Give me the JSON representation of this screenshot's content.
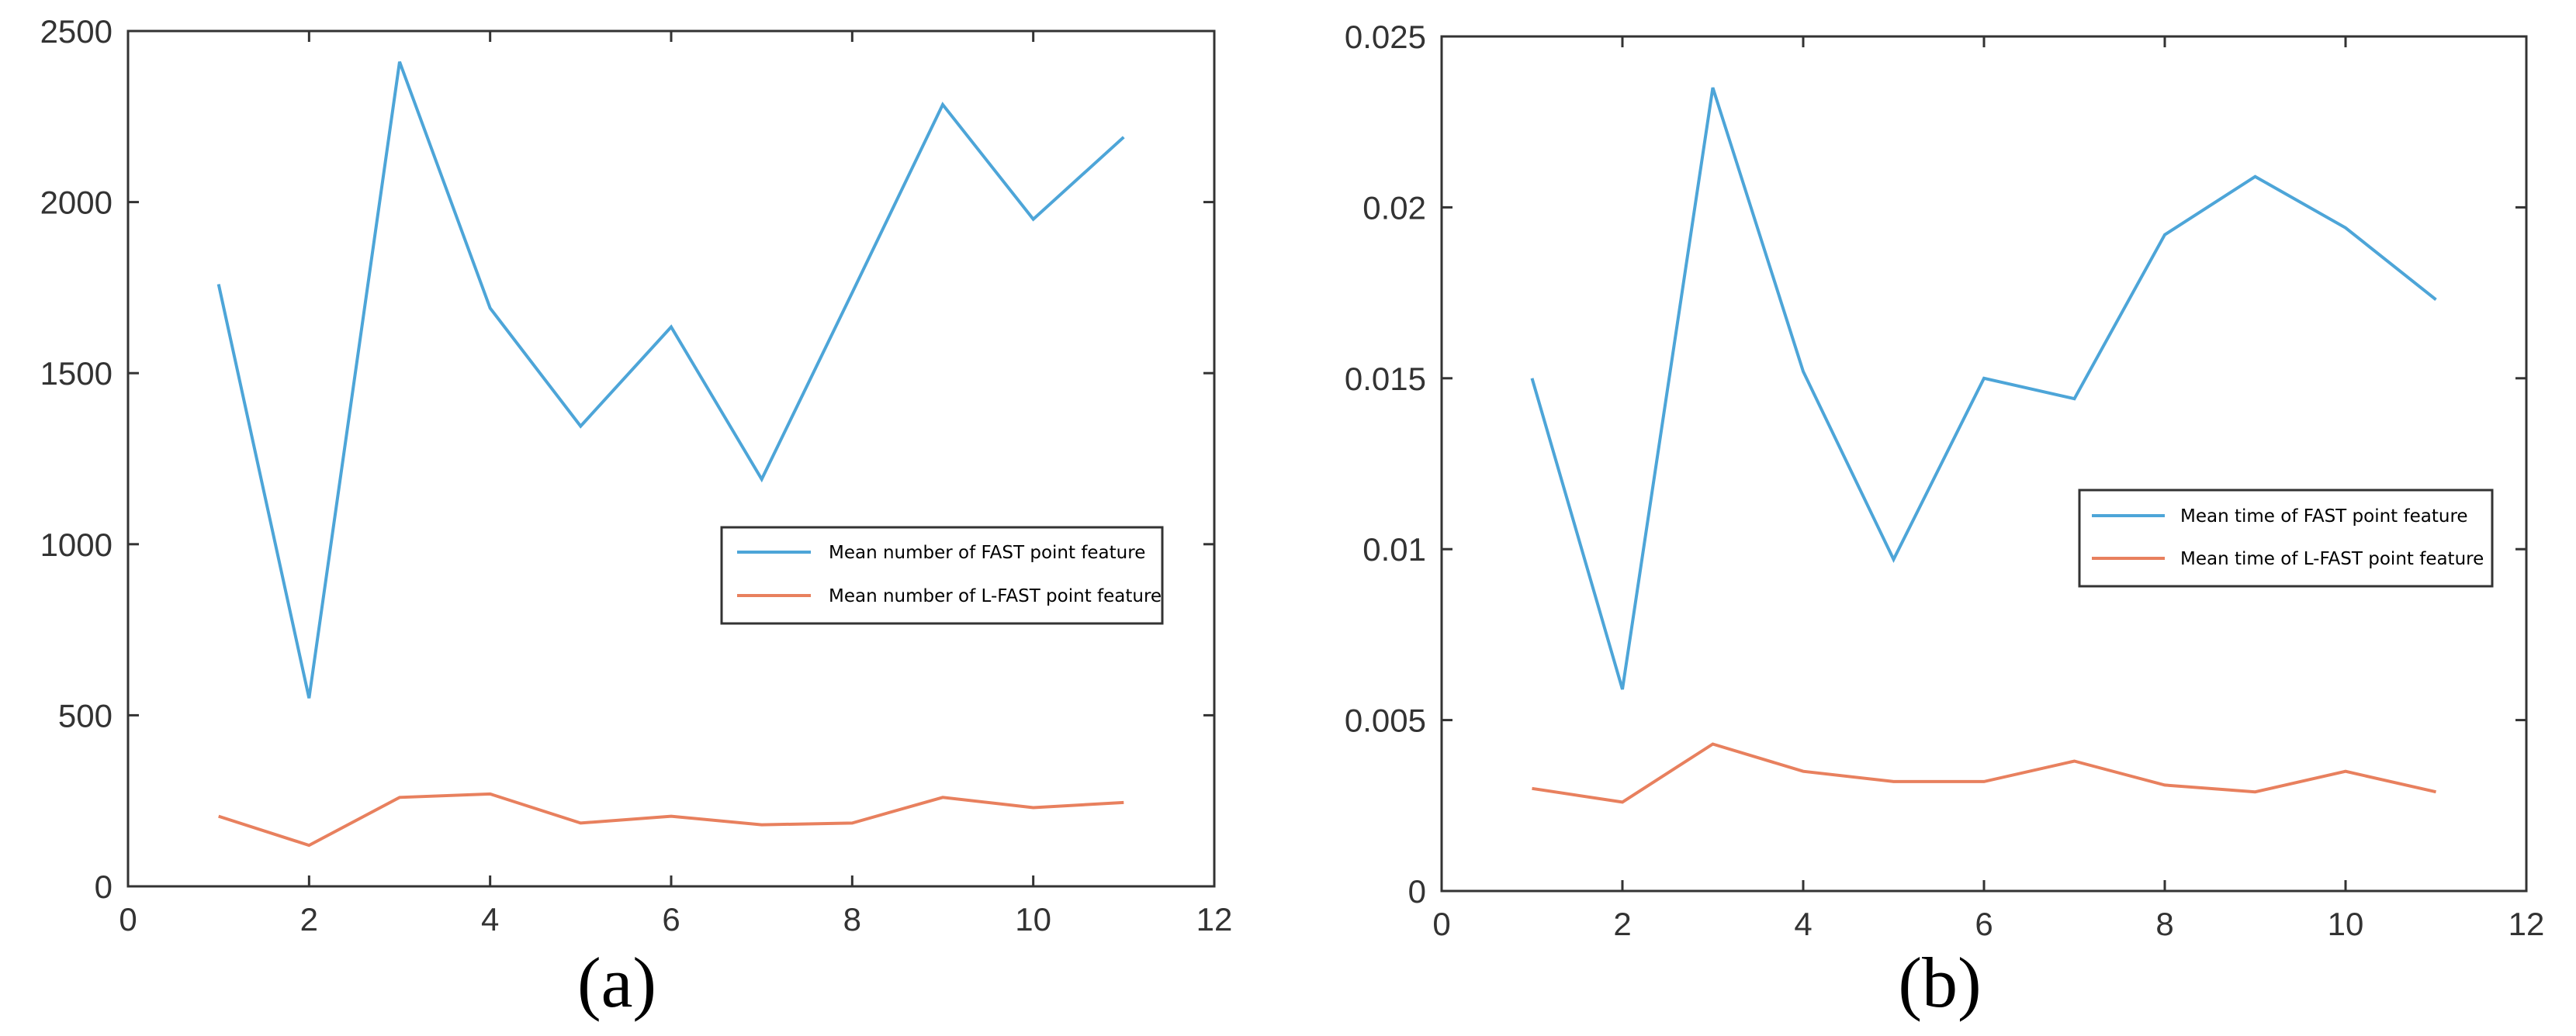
{
  "colors": {
    "fast": "#4DA5D8",
    "lfast": "#E8805E",
    "axis": "#333333"
  },
  "chart_data": [
    {
      "type": "line",
      "panel": "(a)",
      "title": "",
      "xlabel": "",
      "ylabel": "",
      "xlim": [
        0,
        12
      ],
      "ylim": [
        0,
        2500
      ],
      "xticks": [
        0,
        2,
        4,
        6,
        8,
        10,
        12
      ],
      "xtick_labels": [
        "0",
        "2",
        "4",
        "6",
        "8",
        "10",
        "12"
      ],
      "yticks": [
        0,
        500,
        1000,
        1500,
        2000,
        2500
      ],
      "ytick_labels": [
        "0",
        "500",
        "1000",
        "1500",
        "2000",
        "2500"
      ],
      "x": [
        1,
        2,
        3,
        4,
        5,
        6,
        7,
        8,
        9,
        10,
        11
      ],
      "series": [
        {
          "name": "Mean number of FAST point feature",
          "color": "#4DA5D8",
          "values": [
            1760,
            550,
            2410,
            1690,
            1345,
            1635,
            1190,
            1735,
            2285,
            1950,
            2190
          ]
        },
        {
          "name": "Mean number of L-FAST point feature",
          "color": "#E8805E",
          "values": [
            205,
            120,
            260,
            270,
            185,
            205,
            180,
            185,
            260,
            230,
            245
          ]
        }
      ],
      "legend_position": "center-right"
    },
    {
      "type": "line",
      "panel": "(b)",
      "title": "",
      "xlabel": "",
      "ylabel": "",
      "xlim": [
        0,
        12
      ],
      "ylim": [
        0,
        0.025
      ],
      "xticks": [
        0,
        2,
        4,
        6,
        8,
        10,
        12
      ],
      "xtick_labels": [
        "0",
        "2",
        "4",
        "6",
        "8",
        "10",
        "12"
      ],
      "yticks": [
        0,
        0.005,
        0.01,
        0.015,
        0.02,
        0.025
      ],
      "ytick_labels": [
        "0",
        "0.005",
        "0.01",
        "0.015",
        "0.02",
        "0.025"
      ],
      "x": [
        1,
        2,
        3,
        4,
        5,
        6,
        7,
        8,
        9,
        10,
        11
      ],
      "series": [
        {
          "name": "Mean time of FAST point feature",
          "color": "#4DA5D8",
          "values": [
            0.015,
            0.0059,
            0.0235,
            0.0152,
            0.0097,
            0.015,
            0.0144,
            0.0192,
            0.0209,
            0.0194,
            0.0173
          ]
        },
        {
          "name": "Mean time of L-FAST point feature",
          "color": "#E8805E",
          "values": [
            0.003,
            0.0026,
            0.0043,
            0.0035,
            0.0032,
            0.0032,
            0.0038,
            0.0031,
            0.0029,
            0.0035,
            0.0029
          ]
        }
      ],
      "legend_position": "center-right"
    }
  ]
}
